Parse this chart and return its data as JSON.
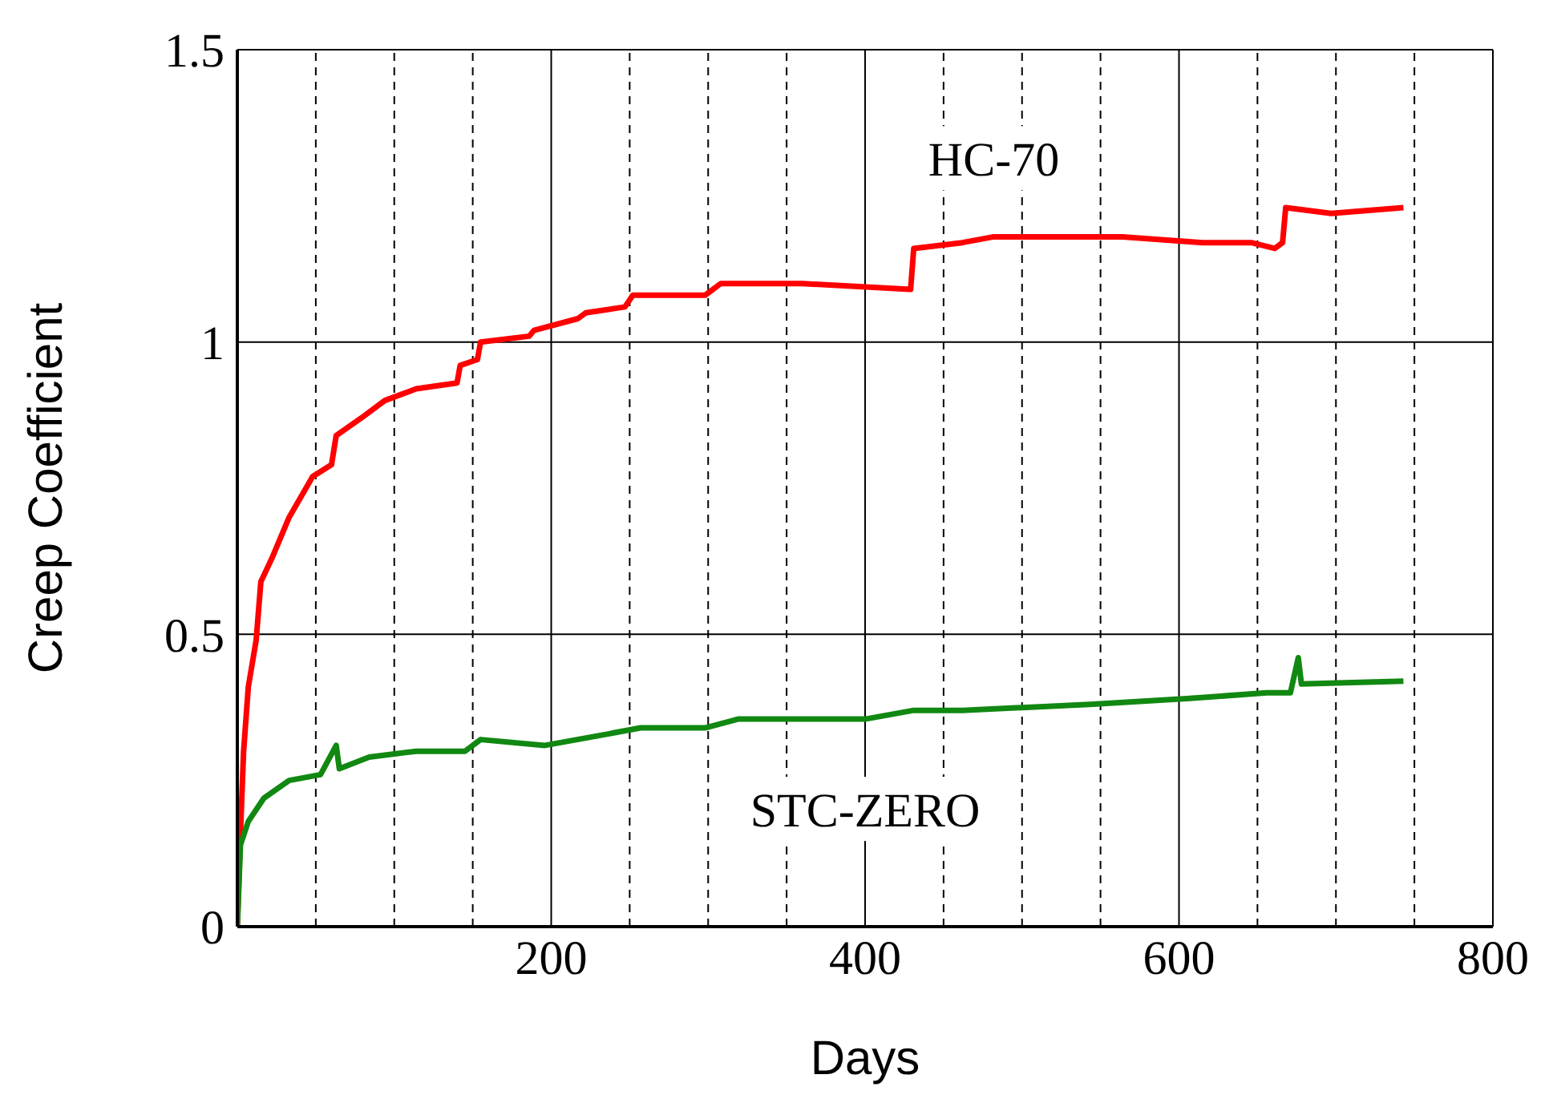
{
  "chart_data": {
    "type": "line",
    "xlabel": "Days",
    "ylabel": "Creep Coefficient",
    "xlim": [
      0,
      800
    ],
    "ylim": [
      0,
      1.5
    ],
    "xticks": [
      {
        "value": 50,
        "label": null
      },
      {
        "value": 100,
        "label": null
      },
      {
        "value": 150,
        "label": null
      },
      200,
      {
        "value": 250,
        "label": null
      },
      {
        "value": 300,
        "label": null
      },
      {
        "value": 350,
        "label": null
      },
      400,
      {
        "value": 450,
        "label": null
      },
      {
        "value": 500,
        "label": null
      },
      {
        "value": 550,
        "label": null
      },
      600,
      {
        "value": 650,
        "label": null
      },
      {
        "value": 700,
        "label": null
      },
      {
        "value": 750,
        "label": null
      },
      800
    ],
    "yticks": [
      0,
      0.5,
      1,
      1.5
    ],
    "grid": true,
    "marker": "none",
    "line_style": "solid",
    "series": [
      {
        "name": "HC-70",
        "color": "#ff0000",
        "x": [
          0,
          2,
          4,
          7,
          12,
          15,
          22,
          33,
          48,
          60,
          63,
          79,
          94,
          114,
          140,
          142,
          153,
          155,
          186,
          189,
          217,
          222,
          247,
          252,
          298,
          308,
          360,
          429,
          431,
          462,
          482,
          564,
          615,
          646,
          661,
          666,
          668,
          697,
          743
        ],
        "values": [
          0,
          0.16,
          0.3,
          0.41,
          0.49,
          0.59,
          0.63,
          0.7,
          0.77,
          0.79,
          0.84,
          0.87,
          0.9,
          0.92,
          0.93,
          0.96,
          0.97,
          1.0,
          1.01,
          1.02,
          1.04,
          1.05,
          1.06,
          1.08,
          1.08,
          1.1,
          1.1,
          1.09,
          1.16,
          1.17,
          1.18,
          1.18,
          1.17,
          1.17,
          1.16,
          1.17,
          1.23,
          1.22,
          1.23
        ]
      },
      {
        "name": "STC-ZERO",
        "color": "#118811",
        "x": [
          0,
          2,
          7,
          17,
          33,
          53,
          63,
          65,
          84,
          114,
          145,
          155,
          196,
          237,
          257,
          298,
          319,
          400,
          431,
          462,
          543,
          605,
          656,
          671,
          676,
          678,
          743
        ],
        "values": [
          0,
          0.14,
          0.18,
          0.22,
          0.25,
          0.26,
          0.31,
          0.27,
          0.29,
          0.3,
          0.3,
          0.32,
          0.31,
          0.33,
          0.34,
          0.34,
          0.355,
          0.355,
          0.37,
          0.37,
          0.38,
          0.39,
          0.4,
          0.4,
          0.46,
          0.415,
          0.42
        ]
      }
    ]
  }
}
